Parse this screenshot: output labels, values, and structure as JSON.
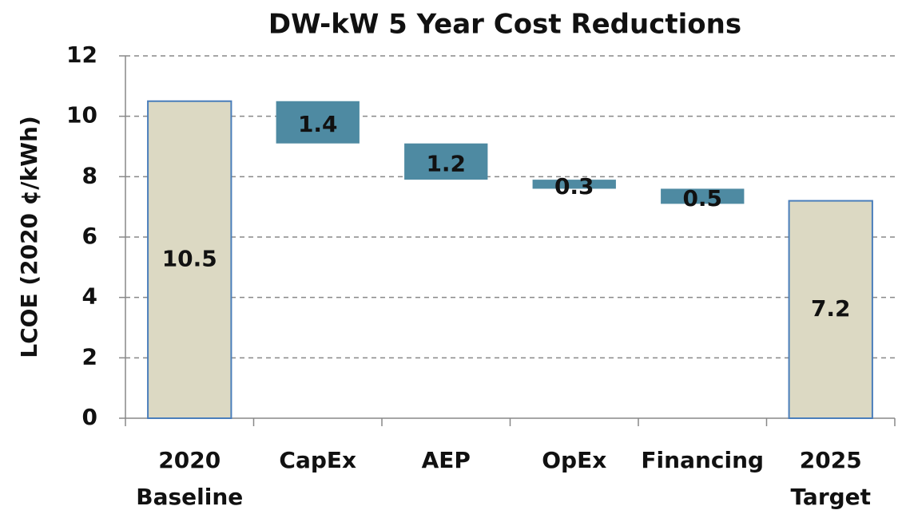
{
  "chart_data": {
    "type": "waterfall",
    "title": "DW-kW 5 Year Cost Reductions",
    "y_label": "LCOE (2020 ¢/kWh)",
    "categories": [
      [
        "2020",
        "Baseline"
      ],
      [
        "CapEx"
      ],
      [
        "AEP"
      ],
      [
        "OpEx"
      ],
      [
        "Financing"
      ],
      [
        "2025",
        "Target"
      ]
    ],
    "values": [
      10.5,
      1.4,
      1.2,
      0.3,
      0.5,
      7.2
    ],
    "measure": [
      "total",
      "decrease",
      "decrease",
      "decrease",
      "decrease",
      "total"
    ],
    "colors": {
      "total": "#dcd9c3",
      "decrease": "#4e8aa2"
    },
    "ylim": [
      0,
      12
    ],
    "yticks": [
      0,
      2,
      4,
      6,
      8,
      10,
      12
    ],
    "grid": true
  }
}
